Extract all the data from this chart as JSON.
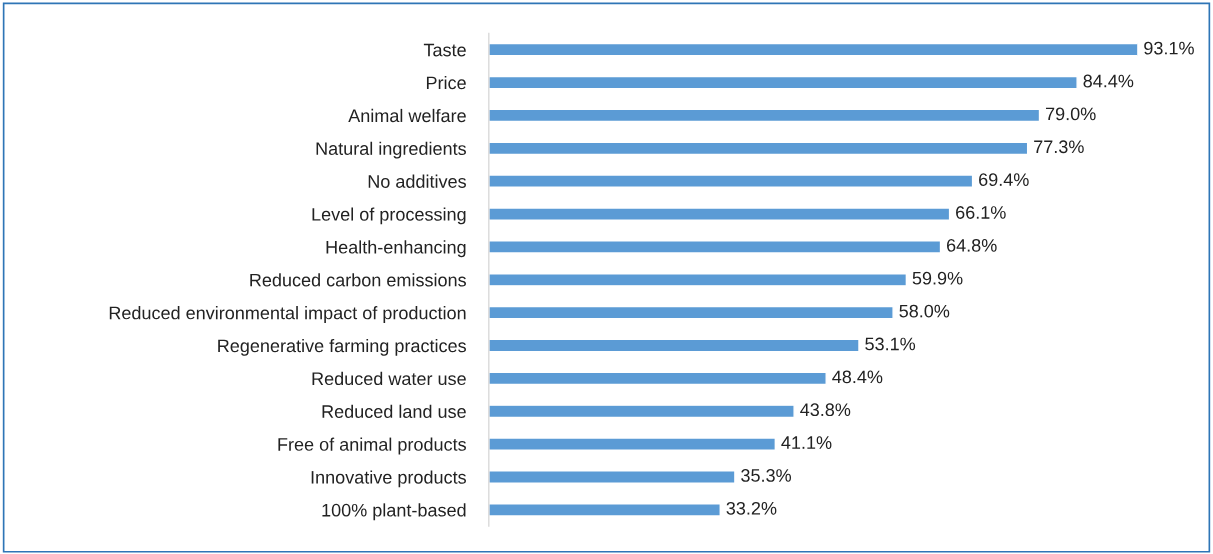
{
  "chart_data": {
    "type": "bar",
    "orientation": "horizontal",
    "categories": [
      "Taste",
      "Price",
      "Animal welfare",
      "Natural ingredients",
      "No additives",
      "Level of processing",
      "Health-enhancing",
      "Reduced carbon emissions",
      "Reduced environmental impact of production",
      "Regenerative farming practices",
      "Reduced water use",
      "Reduced land use",
      "Free of animal products",
      "Innovative products",
      "100% plant-based"
    ],
    "values": [
      93.1,
      84.4,
      79.0,
      77.3,
      69.4,
      66.1,
      64.8,
      59.9,
      58.0,
      53.1,
      48.4,
      43.8,
      41.1,
      35.3,
      33.2
    ],
    "value_labels": [
      "93.1%",
      "84.4%",
      "79.0%",
      "77.3%",
      "69.4%",
      "66.1%",
      "64.8%",
      "59.9%",
      "58.0%",
      "53.1%",
      "48.4%",
      "43.8%",
      "41.1%",
      "35.3%",
      "33.2%"
    ],
    "color": "#5b9bd5",
    "grid": false,
    "legend": false
  }
}
